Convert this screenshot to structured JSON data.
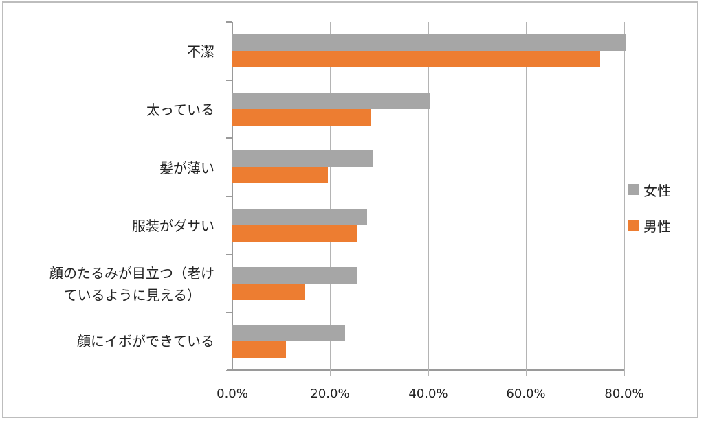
{
  "chart_data": {
    "type": "bar",
    "orientation": "horizontal",
    "title": "",
    "xlabel": "",
    "ylabel": "",
    "xlim": [
      0,
      80
    ],
    "x_ticks": [
      "0.0%",
      "20.0%",
      "40.0%",
      "60.0%",
      "80.0%"
    ],
    "grid": true,
    "legend_position": "right",
    "categories": [
      "不潔",
      "太っている",
      "髪が薄い",
      "服装がダサい",
      "顔のたるみが目立つ（老けているように見える）",
      "顔にイボができている"
    ],
    "series": [
      {
        "name": "女性",
        "color": "#a6a6a6",
        "values": [
          80.3,
          40.4,
          28.6,
          27.5,
          25.5,
          23.0
        ]
      },
      {
        "name": "男性",
        "color": "#ed7d31",
        "values": [
          75.1,
          28.4,
          19.5,
          25.5,
          14.9,
          10.9
        ]
      }
    ]
  },
  "labels": {
    "cat0": "不潔",
    "cat1": "太っている",
    "cat2": "髪が薄い",
    "cat3": "服装がダサい",
    "cat4_line1": "顔のたるみが目立つ（老け",
    "cat4_line2": "ているように見える）",
    "cat5": "顔にイボができている"
  },
  "x_ticks": [
    "0.0%",
    "20.0%",
    "40.0%",
    "60.0%",
    "80.0%"
  ],
  "legend": [
    {
      "label": "女性",
      "color": "#a6a6a6"
    },
    {
      "label": "男性",
      "color": "#ed7d31"
    }
  ]
}
